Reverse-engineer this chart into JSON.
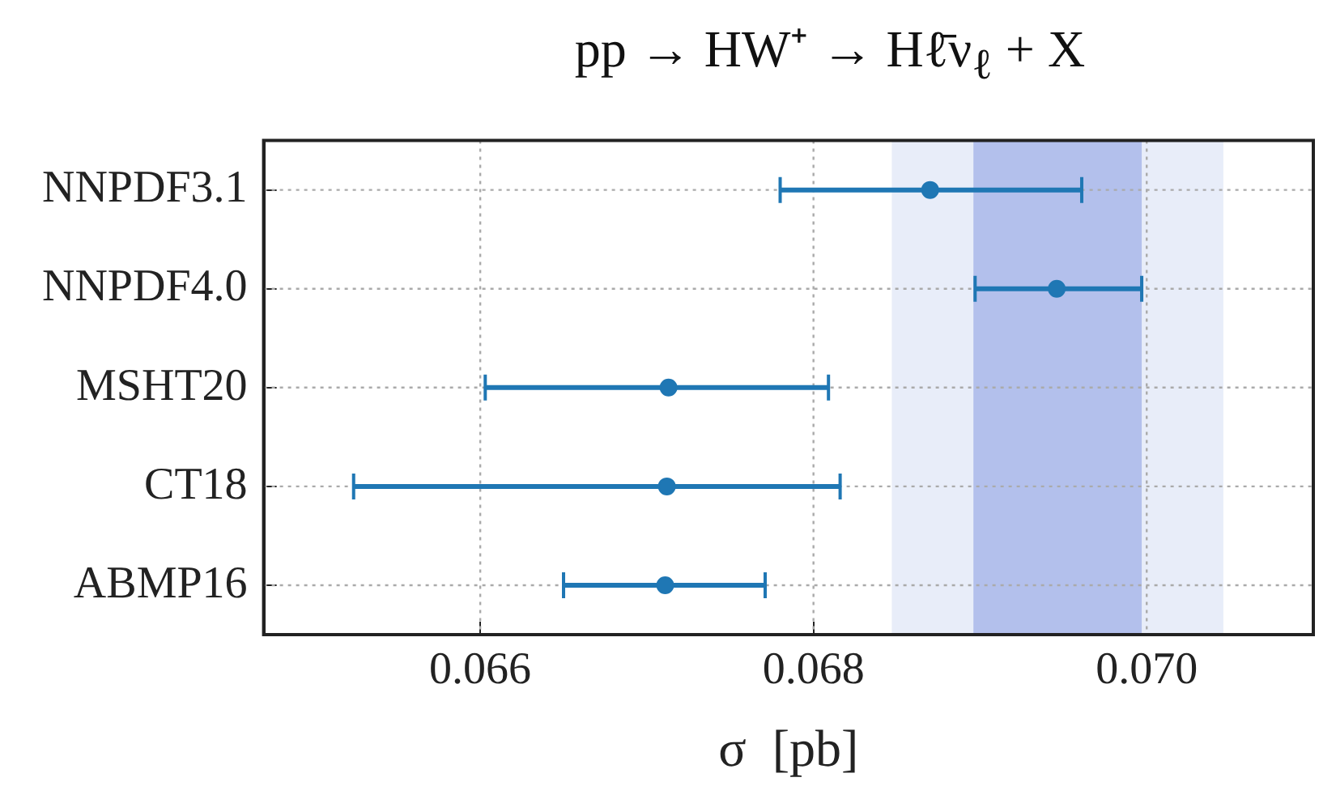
{
  "chart_data": {
    "type": "scatter",
    "orientation": "horizontal",
    "title": "pp → HW⁺ → Hℓ̄ν$_{ℓ}$ + X",
    "xlabel": "σ  [pb]",
    "categories": [
      "NNPDF3.1",
      "NNPDF4.0",
      "MSHT20",
      "CT18",
      "ABMP16"
    ],
    "series": [
      {
        "color": "#1f77b4",
        "values": [
          0.0687,
          0.06946,
          0.06713,
          0.06712,
          0.06711
        ],
        "errors": [
          [
            0.0678,
            0.06961
          ],
          [
            0.06897,
            0.06997
          ],
          [
            0.06603,
            0.06809
          ],
          [
            0.06524,
            0.06816
          ],
          [
            0.0665,
            0.06771
          ]
        ]
      }
    ],
    "xlim": [
      0.0647,
      0.071
    ],
    "xticks": [
      {
        "value": 0.066,
        "label": "0.066"
      },
      {
        "value": 0.068,
        "label": "0.068"
      },
      {
        "value": 0.07,
        "label": "0.070"
      }
    ],
    "bands": [
      {
        "axis": "x",
        "from": 0.06847,
        "to": 0.07046,
        "color": "#e8edf9"
      },
      {
        "axis": "x",
        "from": 0.06896,
        "to": 0.06997,
        "color": "#b3c0ec"
      }
    ],
    "grid": true,
    "marker": "circle",
    "legend": false
  }
}
